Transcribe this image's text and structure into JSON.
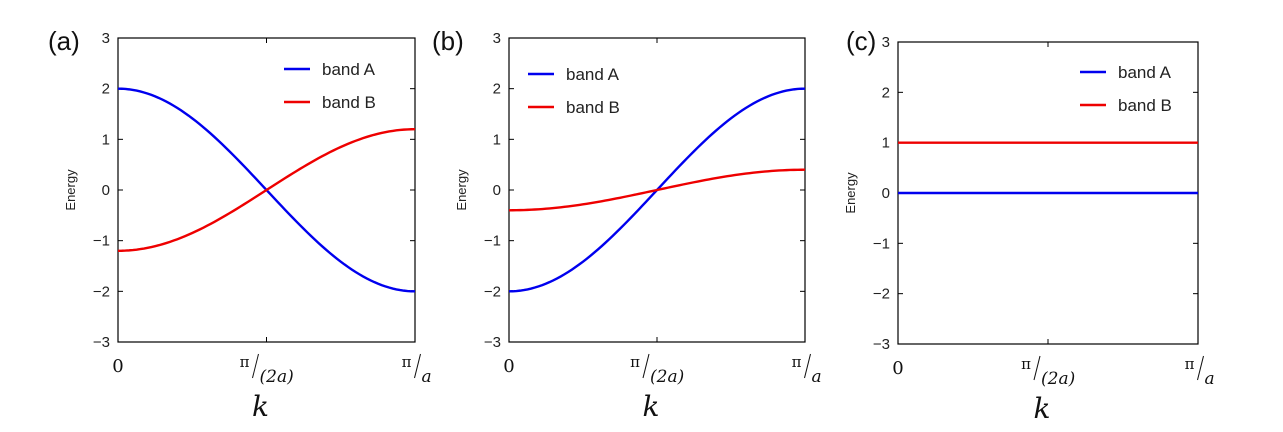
{
  "chart_data": [
    {
      "type": "line",
      "panel": "(a)",
      "ylabel": "Energy",
      "xlabel": "k",
      "ylim": [
        -3,
        3
      ],
      "yticks": [
        "3",
        "2",
        "1",
        "0",
        "−1",
        "−2",
        "−3"
      ],
      "xticks": [
        {
          "pi": "π",
          "den": "(2a)"
        },
        {
          "pi": "π",
          "den": "a"
        }
      ],
      "xtick_zero": "0",
      "legend_position": "top-right",
      "series": [
        {
          "name": "band A",
          "color": "#0000ee",
          "start": 2,
          "end": -2
        },
        {
          "name": "band B",
          "color": "#ee0000",
          "start": -1.2,
          "end": 1.2
        }
      ]
    },
    {
      "type": "line",
      "panel": "(b)",
      "ylabel": "Energy",
      "xlabel": "k",
      "ylim": [
        -3,
        3
      ],
      "yticks": [
        "3",
        "2",
        "1",
        "0",
        "−1",
        "−2",
        "−3"
      ],
      "xticks": [
        {
          "pi": "π",
          "den": "(2a)"
        },
        {
          "pi": "π",
          "den": "a"
        }
      ],
      "xtick_zero": "0",
      "legend_position": "top-left",
      "series": [
        {
          "name": "band A",
          "color": "#0000ee",
          "start": -2,
          "end": 2
        },
        {
          "name": "band B",
          "color": "#ee0000",
          "start": -0.4,
          "end": 0.4
        }
      ]
    },
    {
      "type": "line",
      "panel": "(c)",
      "ylabel": "Energy",
      "xlabel": "k",
      "ylim": [
        -3,
        3
      ],
      "yticks": [
        "3",
        "2",
        "1",
        "0",
        "−1",
        "−2",
        "−3"
      ],
      "xticks": [
        {
          "pi": "π",
          "den": "(2a)"
        },
        {
          "pi": "π",
          "den": "a"
        }
      ],
      "xtick_zero": "0",
      "legend_position": "top-right",
      "series": [
        {
          "name": "band A",
          "color": "#0000ee",
          "start": 0,
          "end": 0
        },
        {
          "name": "band B",
          "color": "#ee0000",
          "start": 1,
          "end": 1
        }
      ]
    }
  ]
}
